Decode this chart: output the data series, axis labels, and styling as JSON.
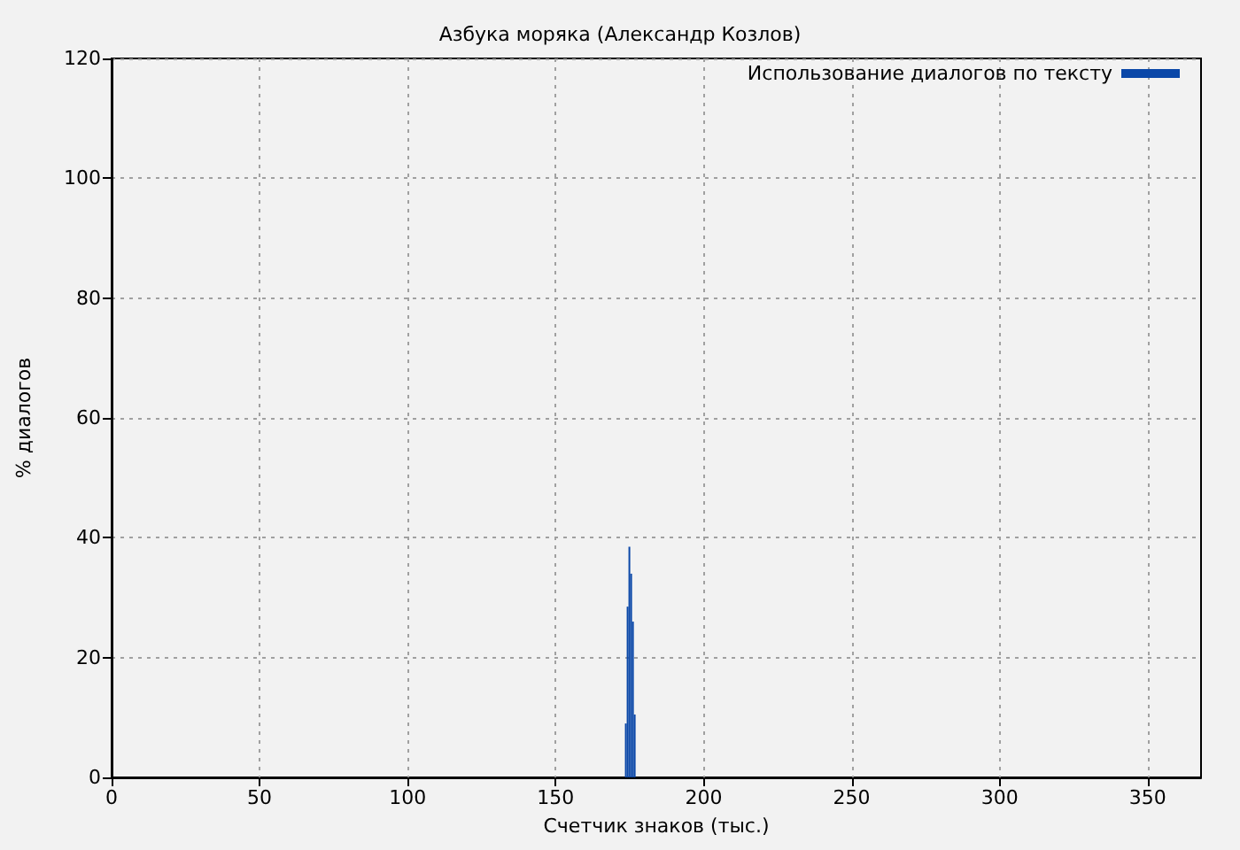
{
  "chart_data": {
    "type": "histogram",
    "title": "Азбука моряка (Александр Козлов)",
    "xlabel": "Счетчик знаков (тыс.)",
    "ylabel": "% диалогов",
    "bins": [
      173.4,
      174.0,
      174.6,
      175.2,
      175.8,
      176.4,
      177.0
    ],
    "series": [
      {
        "name": "Использование диалогов по тексту",
        "color": "#0a47a8",
        "values": [
          9,
          28.5,
          38.5,
          34,
          26,
          10.5
        ]
      }
    ],
    "xlim": [
      0,
      368
    ],
    "xticks": [
      0,
      50,
      100,
      150,
      200,
      250,
      300,
      350
    ],
    "ylim": [
      0,
      120
    ],
    "yticks": [
      0,
      20,
      40,
      60,
      80,
      100,
      120
    ],
    "grid": true,
    "legend": "top right"
  }
}
